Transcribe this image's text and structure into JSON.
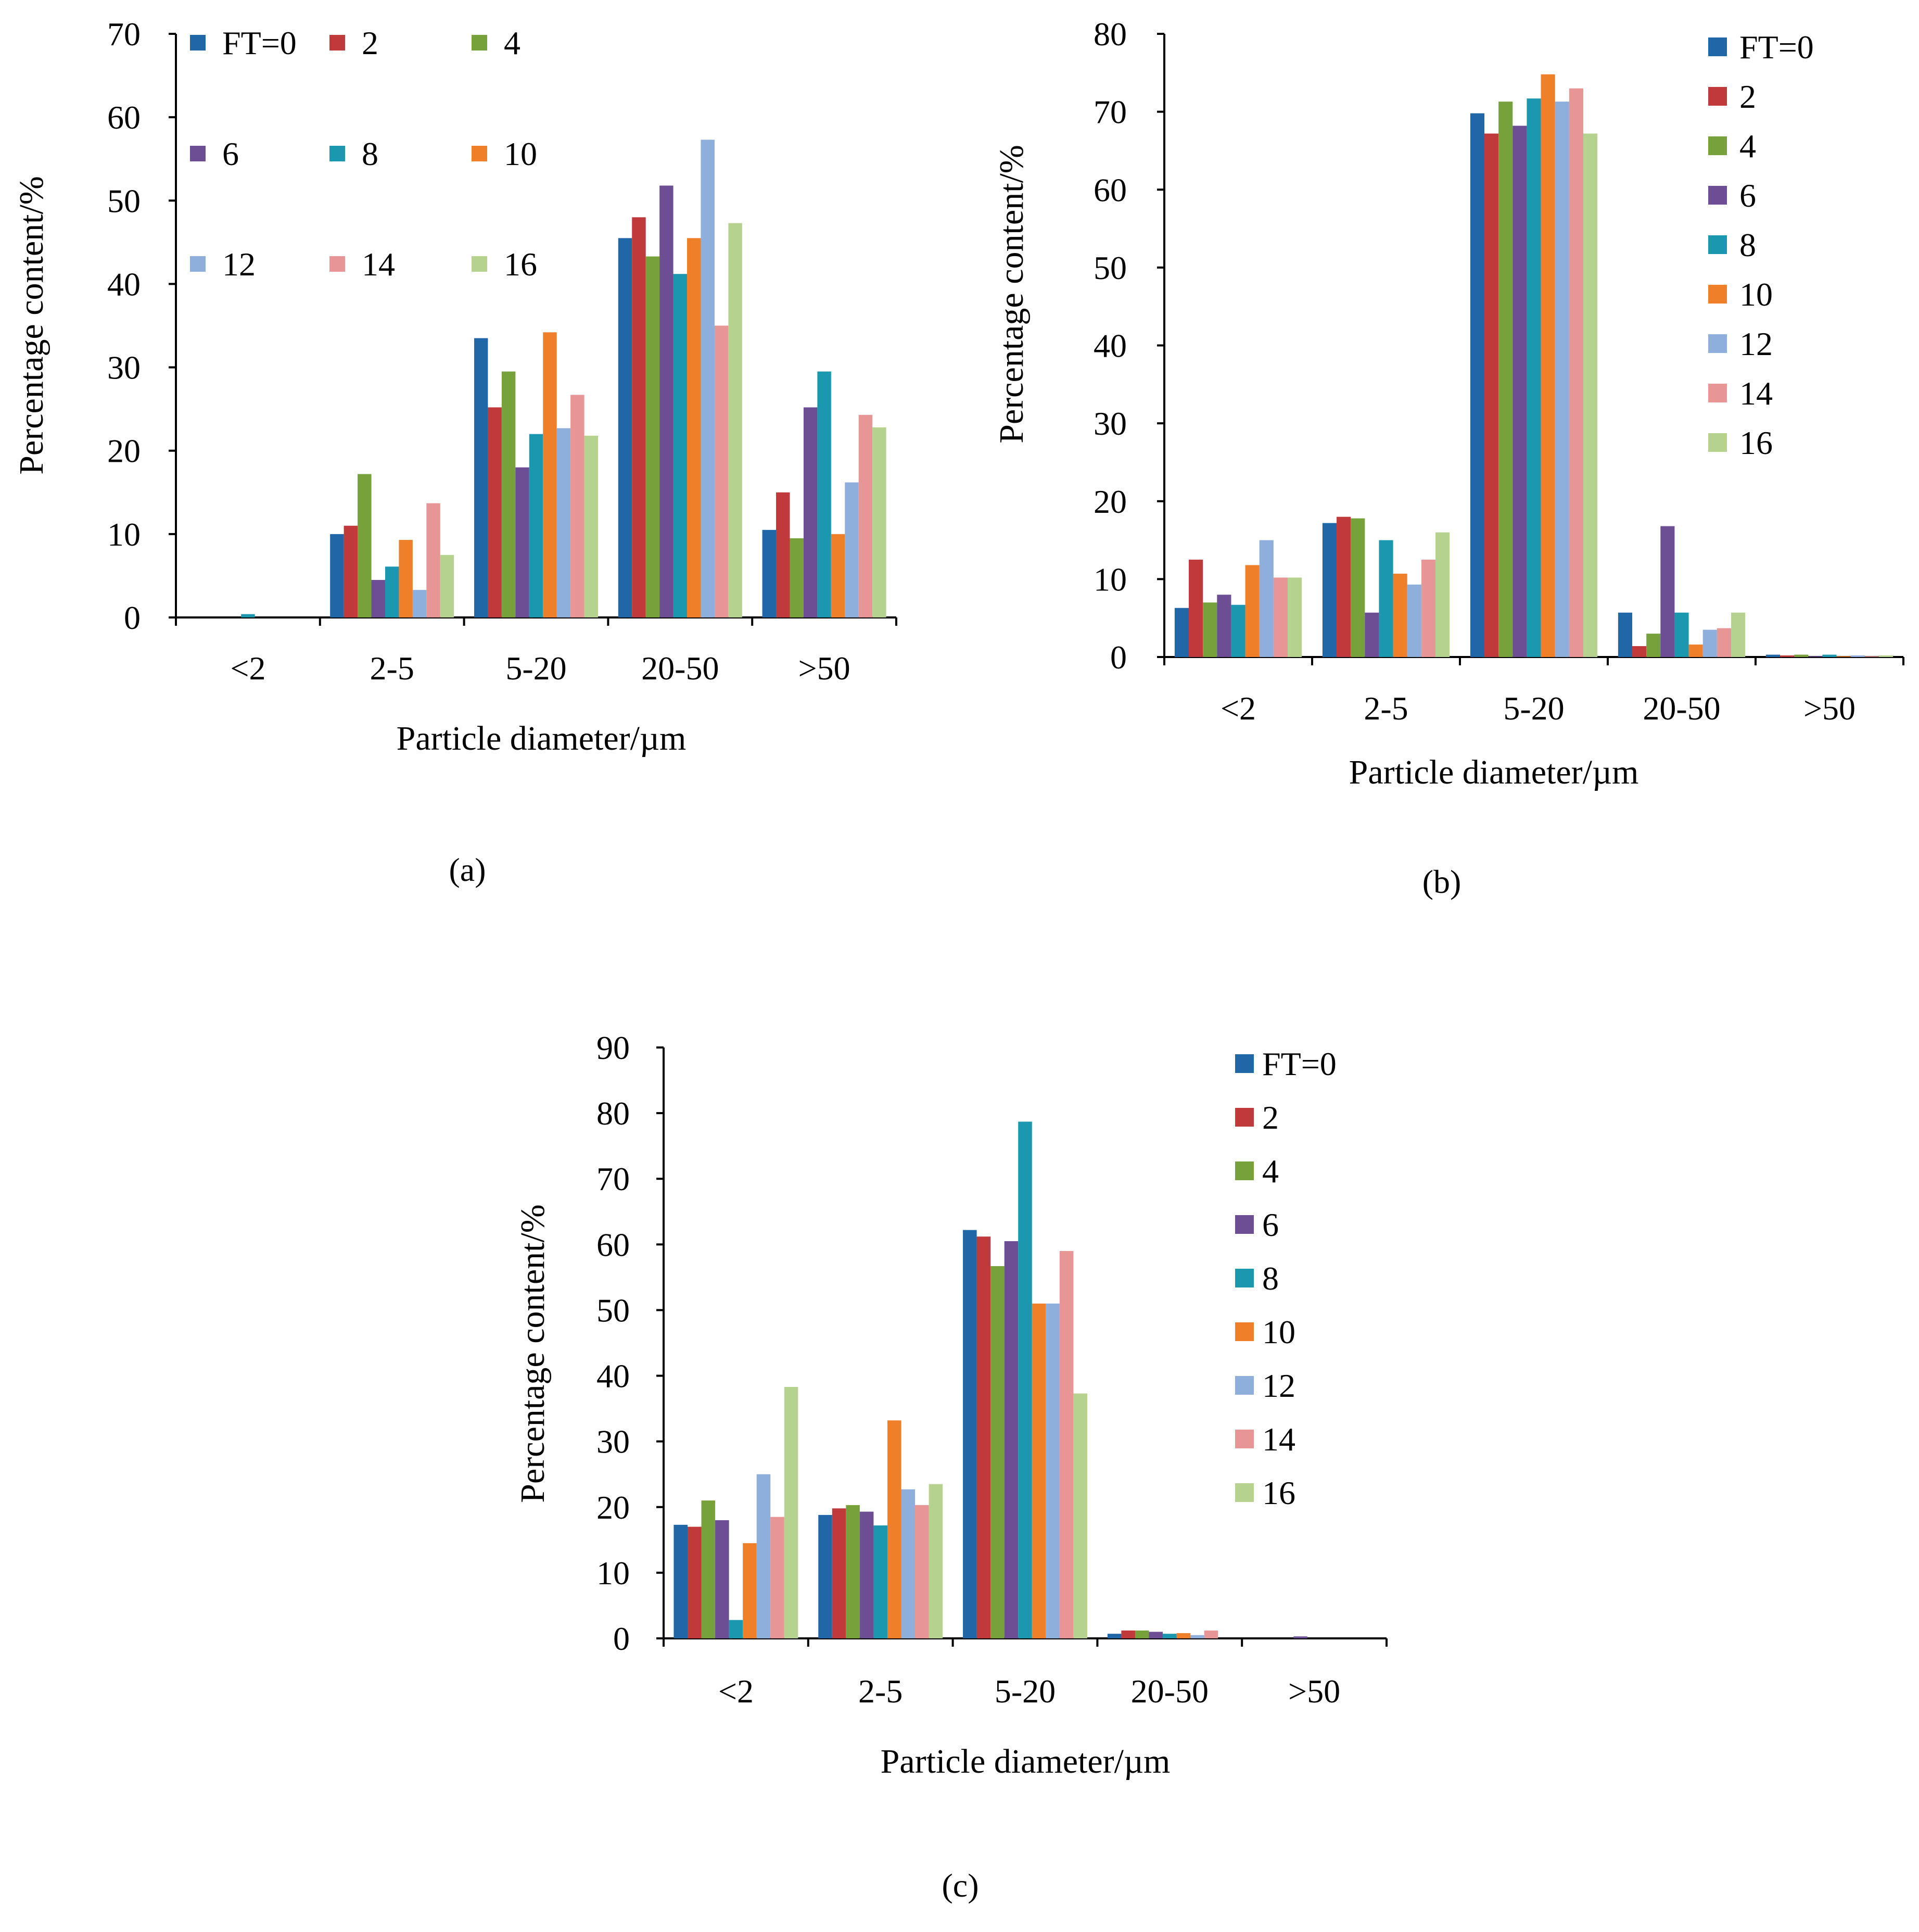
{
  "panels": [
    {
      "label": "(a)"
    },
    {
      "label": "(b)"
    },
    {
      "label": "(c)"
    }
  ],
  "legend_labels": [
    "FT=0",
    "2",
    "4",
    "6",
    "8",
    "10",
    "12",
    "14",
    "16"
  ],
  "colors": [
    "#2067a8",
    "#c0393b",
    "#76a13b",
    "#6d4e94",
    "#1b97b0",
    "#f07f2a",
    "#8eaedb",
    "#e89595",
    "#b6d28f"
  ],
  "chart_data": [
    {
      "type": "bar",
      "title": "",
      "xlabel": "Particle diameter/µm",
      "ylabel": "Percentage content/%",
      "categories": [
        "<2",
        "2-5",
        "5-20",
        "20-50",
        ">50"
      ],
      "ylim": [
        0,
        70
      ],
      "yticks": [
        0,
        10,
        20,
        30,
        40,
        50,
        60,
        70
      ],
      "legend_position": "top-left",
      "series": [
        {
          "name": "FT=0",
          "values": [
            0,
            10,
            33.5,
            45.5,
            10.5
          ]
        },
        {
          "name": "2",
          "values": [
            0,
            11,
            25.2,
            48,
            15
          ]
        },
        {
          "name": "4",
          "values": [
            0,
            17.2,
            29.5,
            43.3,
            9.5
          ]
        },
        {
          "name": "6",
          "values": [
            0,
            4.5,
            18,
            51.8,
            25.2
          ]
        },
        {
          "name": "8",
          "values": [
            0.4,
            6.1,
            22,
            41.2,
            29.5
          ]
        },
        {
          "name": "10",
          "values": [
            0,
            9.3,
            34.2,
            45.5,
            10
          ]
        },
        {
          "name": "12",
          "values": [
            0,
            3.3,
            22.7,
            57.3,
            16.2
          ]
        },
        {
          "name": "14",
          "values": [
            0,
            13.7,
            26.7,
            35,
            24.3
          ]
        },
        {
          "name": "16",
          "values": [
            0,
            7.5,
            21.8,
            47.3,
            22.8
          ]
        }
      ]
    },
    {
      "type": "bar",
      "title": "",
      "xlabel": "Particle diameter/µm",
      "ylabel": "Percentage content/%",
      "categories": [
        "<2",
        "2-5",
        "5-20",
        "20-50",
        ">50"
      ],
      "ylim": [
        0,
        80
      ],
      "yticks": [
        0,
        10,
        20,
        30,
        40,
        50,
        60,
        70,
        80
      ],
      "legend_position": "top-right",
      "series": [
        {
          "name": "FT=0",
          "values": [
            6.3,
            17.2,
            69.8,
            5.7,
            0.3
          ]
        },
        {
          "name": "2",
          "values": [
            12.5,
            18,
            67.2,
            1.4,
            0.2
          ]
        },
        {
          "name": "4",
          "values": [
            7,
            17.8,
            71.3,
            3,
            0.3
          ]
        },
        {
          "name": "6",
          "values": [
            8,
            5.7,
            68.2,
            16.8,
            0.1
          ]
        },
        {
          "name": "8",
          "values": [
            6.7,
            15,
            71.7,
            5.7,
            0.3
          ]
        },
        {
          "name": "10",
          "values": [
            11.8,
            10.7,
            74.8,
            1.6,
            0.1
          ]
        },
        {
          "name": "12",
          "values": [
            15,
            9.3,
            71.3,
            3.5,
            0.2
          ]
        },
        {
          "name": "14",
          "values": [
            10.2,
            12.5,
            73,
            3.7,
            0.1
          ]
        },
        {
          "name": "16",
          "values": [
            10.2,
            16,
            67.2,
            5.7,
            0.2
          ]
        }
      ]
    },
    {
      "type": "bar",
      "title": "",
      "xlabel": "Particle diameter/µm",
      "ylabel": "Percentage content/%",
      "categories": [
        "<2",
        "2-5",
        "5-20",
        "20-50",
        ">50"
      ],
      "ylim": [
        0,
        90
      ],
      "yticks": [
        0,
        10,
        20,
        30,
        40,
        50,
        60,
        70,
        80,
        90
      ],
      "legend_position": "right",
      "series": [
        {
          "name": "FT=0",
          "values": [
            17.3,
            18.8,
            62.2,
            0.7,
            0
          ]
        },
        {
          "name": "2",
          "values": [
            17,
            19.8,
            61.2,
            1.2,
            0
          ]
        },
        {
          "name": "4",
          "values": [
            21,
            20.3,
            56.7,
            1.2,
            0
          ]
        },
        {
          "name": "6",
          "values": [
            18,
            19.3,
            60.5,
            1,
            0.3
          ]
        },
        {
          "name": "8",
          "values": [
            2.8,
            17.2,
            78.7,
            0.7,
            0
          ]
        },
        {
          "name": "10",
          "values": [
            14.5,
            33.2,
            51,
            0.8,
            0
          ]
        },
        {
          "name": "12",
          "values": [
            25,
            22.7,
            51,
            0.5,
            0
          ]
        },
        {
          "name": "14",
          "values": [
            18.5,
            20.3,
            59,
            1.2,
            0
          ]
        },
        {
          "name": "16",
          "values": [
            38.3,
            23.5,
            37.3,
            0,
            0
          ]
        }
      ]
    }
  ]
}
